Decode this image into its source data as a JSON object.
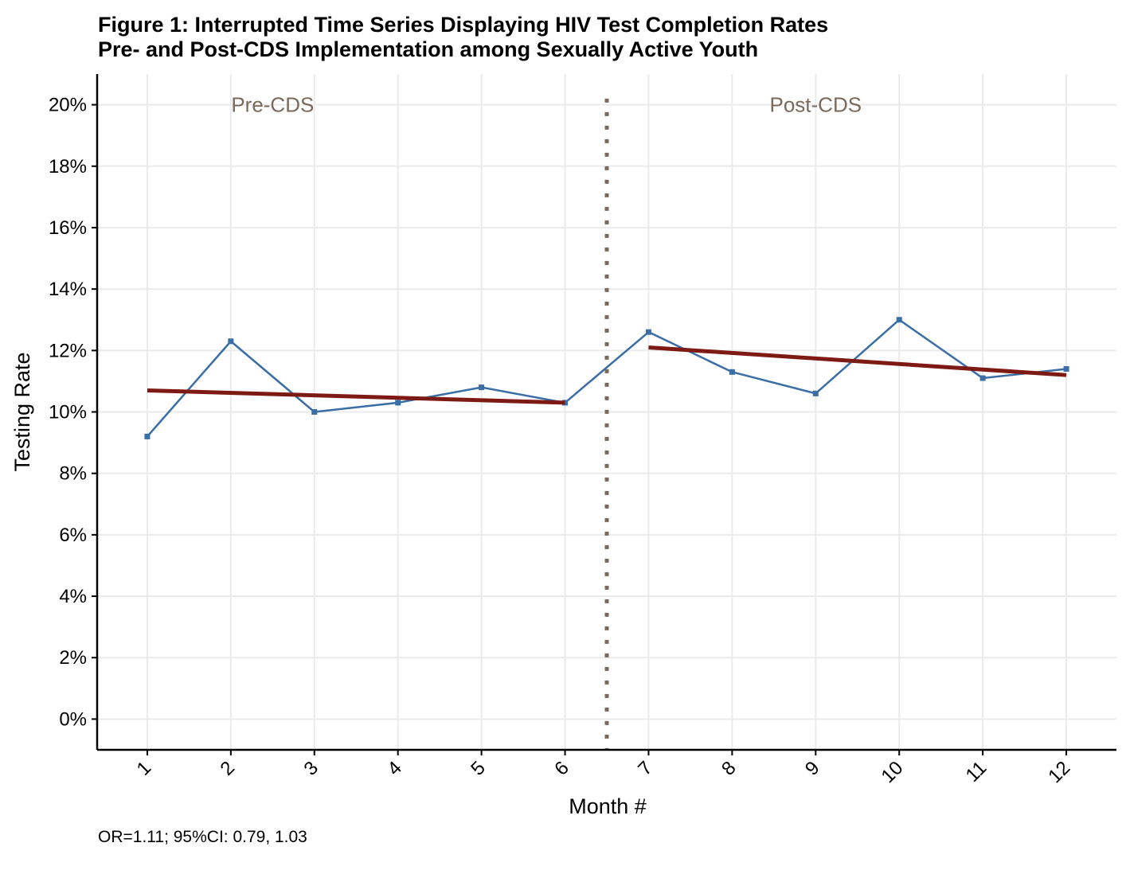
{
  "title_line1": "Figure 1: Interrupted Time Series Displaying HIV Test Completion Rates",
  "title_line2": "Pre- and Post-CDS Implementation among Sexually Active Youth",
  "caption": "OR=1.11; 95%CI: 0.79, 1.03",
  "chart_data": {
    "type": "line",
    "title": "Figure 1: Interrupted Time Series Displaying HIV Test Completion Rates Pre- and Post-CDS Implementation among Sexually Active Youth",
    "xlabel": "Month #",
    "ylabel": "Testing Rate",
    "x": [
      1,
      2,
      3,
      4,
      5,
      6,
      7,
      8,
      9,
      10,
      11,
      12
    ],
    "xticklabels": [
      "1",
      "2",
      "3",
      "4",
      "5",
      "6",
      "7",
      "8",
      "9",
      "10",
      "11",
      "12"
    ],
    "yticks": [
      0,
      2,
      4,
      6,
      8,
      10,
      12,
      14,
      16,
      18,
      20
    ],
    "yticklabels": [
      "0%",
      "2%",
      "4%",
      "6%",
      "8%",
      "10%",
      "12%",
      "14%",
      "16%",
      "18%",
      "20%"
    ],
    "ylim": [
      -1,
      21
    ],
    "xlim": [
      0.4,
      12.6
    ],
    "grid": true,
    "series": [
      {
        "values": [
          9.2,
          12.3,
          10.0,
          10.3,
          10.8,
          10.3,
          12.6,
          11.3,
          10.6,
          13.0,
          11.1,
          11.4
        ],
        "color": "#3a6ea5",
        "marker": "square"
      }
    ],
    "trend_lines": [
      {
        "x": [
          1,
          6
        ],
        "y": [
          10.7,
          10.3
        ],
        "color": "#7e1a14"
      },
      {
        "x": [
          7,
          12
        ],
        "y": [
          12.1,
          11.2
        ],
        "color": "#7e1a14"
      }
    ],
    "interruption": {
      "x": 6.5,
      "color": "#7a6a5c",
      "style": "dotted"
    },
    "annotations": [
      {
        "text": "Pre-CDS",
        "x": 2.5,
        "y": 20,
        "color": "#7a6a5c"
      },
      {
        "text": "Post-CDS",
        "x": 9.0,
        "y": 20,
        "color": "#7a6a5c"
      }
    ]
  }
}
